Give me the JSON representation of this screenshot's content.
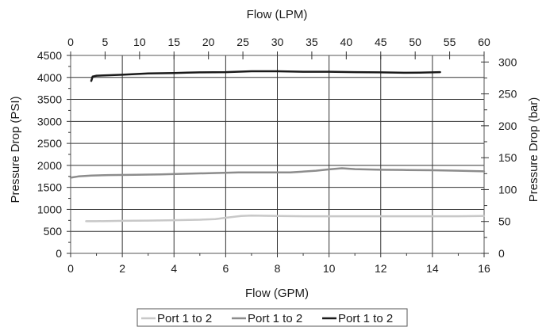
{
  "chart_data": {
    "type": "line",
    "x_top_label": "Flow (LPM)",
    "x_bottom_label": "Flow (GPM)",
    "y_left_label": "Pressure Drop (PSI)",
    "y_right_label": "Pressure Drop (bar)",
    "x_bottom_range": [
      0,
      16
    ],
    "x_top_range": [
      0,
      60
    ],
    "y_left_range": [
      0,
      4500
    ],
    "y_right_range": [
      0,
      310.3
    ],
    "x_bottom_ticks": [
      "0",
      "2",
      "4",
      "6",
      "8",
      "10",
      "12",
      "14",
      "16"
    ],
    "x_top_ticks": [
      "0",
      "5",
      "10",
      "15",
      "20",
      "25",
      "30",
      "35",
      "40",
      "45",
      "50",
      "55",
      "60"
    ],
    "y_left_ticks": [
      "0",
      "500",
      "1000",
      "1500",
      "2000",
      "2500",
      "3000",
      "3500",
      "4000",
      "4500"
    ],
    "y_right_ticks": [
      "0",
      "50",
      "100",
      "150",
      "200",
      "250",
      "300"
    ],
    "grid": true,
    "legend_position": "bottom",
    "series": [
      {
        "name": "Port 1 to 2",
        "color": "#c8c8c8",
        "x": [
          0.6,
          1.0,
          2.0,
          3.0,
          4.0,
          5.0,
          5.6,
          6.0,
          6.6,
          7.0,
          8.0,
          9.0,
          10.0,
          11.0,
          12.0,
          13.0,
          14.0,
          15.0,
          16.0
        ],
        "y": [
          730,
          730,
          740,
          745,
          755,
          765,
          780,
          810,
          850,
          860,
          850,
          845,
          845,
          845,
          845,
          845,
          845,
          845,
          850
        ]
      },
      {
        "name": "Port 1 to 2",
        "color": "#8c8c8c",
        "x": [
          0.0,
          0.3,
          0.8,
          1.5,
          2.5,
          3.5,
          4.5,
          5.5,
          6.5,
          7.5,
          8.5,
          9.5,
          10.0,
          10.5,
          11.0,
          12.0,
          13.0,
          14.0,
          15.0,
          16.0
        ],
        "y": [
          1720,
          1750,
          1770,
          1780,
          1785,
          1795,
          1810,
          1825,
          1840,
          1840,
          1840,
          1880,
          1910,
          1935,
          1915,
          1900,
          1895,
          1890,
          1880,
          1865
        ]
      },
      {
        "name": "Port 1 to 2",
        "color": "#1a1a1a",
        "x": [
          0.8,
          0.85,
          1.0,
          1.5,
          2.0,
          3.0,
          4.0,
          4.5,
          5.0,
          6.0,
          7.0,
          8.0,
          9.0,
          10.0,
          11.0,
          12.0,
          13.0,
          13.5,
          14.3
        ],
        "y": [
          3920,
          4020,
          4040,
          4050,
          4060,
          4090,
          4100,
          4110,
          4115,
          4120,
          4140,
          4140,
          4130,
          4130,
          4120,
          4115,
          4105,
          4110,
          4120
        ]
      }
    ]
  }
}
